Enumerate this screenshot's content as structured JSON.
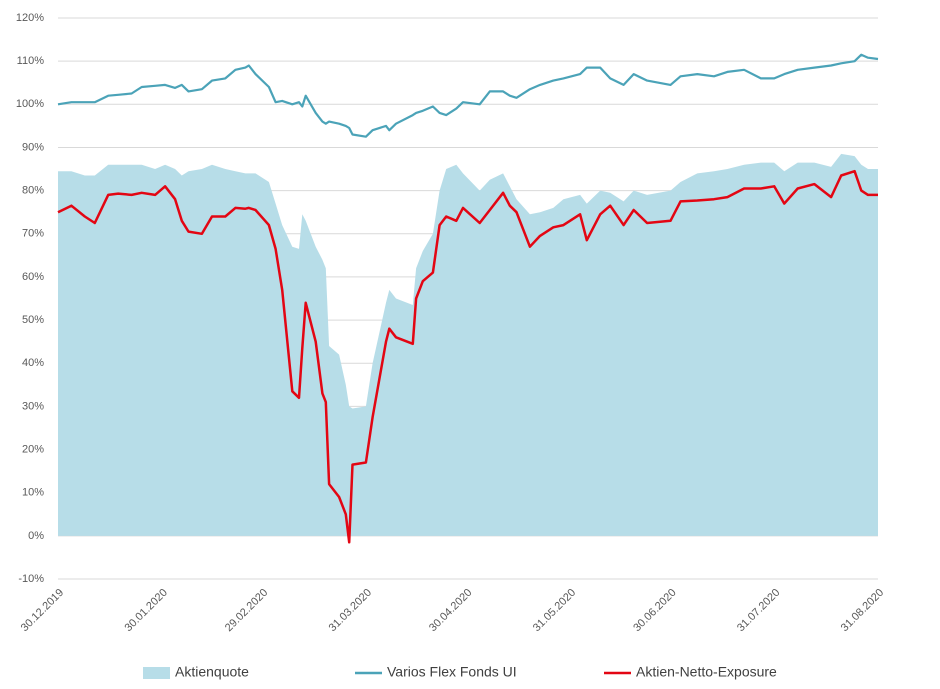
{
  "chart_data": {
    "type": "line",
    "x": [
      "30.12.2019",
      "03.01.2020",
      "07.01.2020",
      "10.01.2020",
      "14.01.2020",
      "17.01.2020",
      "21.01.2020",
      "24.01.2020",
      "28.01.2020",
      "31.01.2020",
      "03.02.2020",
      "05.02.2020",
      "07.02.2020",
      "11.02.2020",
      "14.02.2020",
      "18.02.2020",
      "21.02.2020",
      "24.02.2020",
      "25.02.2020",
      "27.02.2020",
      "02.03.2020",
      "04.03.2020",
      "06.03.2020",
      "09.03.2020",
      "11.03.2020",
      "12.03.2020",
      "13.03.2020",
      "16.03.2020",
      "18.03.2020",
      "19.03.2020",
      "20.03.2020",
      "23.03.2020",
      "25.03.2020",
      "26.03.2020",
      "27.03.2020",
      "31.03.2020",
      "02.04.2020",
      "06.04.2020",
      "07.04.2020",
      "09.04.2020",
      "14.04.2020",
      "15.04.2020",
      "17.04.2020",
      "20.04.2020",
      "22.04.2020",
      "24.04.2020",
      "27.04.2020",
      "29.04.2020",
      "04.05.2020",
      "07.05.2020",
      "11.05.2020",
      "13.05.2020",
      "15.05.2020",
      "19.05.2020",
      "22.05.2020",
      "26.05.2020",
      "29.05.2020",
      "03.06.2020",
      "05.06.2020",
      "09.06.2020",
      "12.06.2020",
      "16.06.2020",
      "19.06.2020",
      "23.06.2020",
      "30.06.2020",
      "03.07.2020",
      "08.07.2020",
      "13.07.2020",
      "17.07.2020",
      "22.07.2020",
      "27.07.2020",
      "31.07.2020",
      "03.08.2020",
      "07.08.2020",
      "12.08.2020",
      "17.08.2020",
      "20.08.2020",
      "24.08.2020",
      "26.08.2020",
      "28.08.2020",
      "31.08.2020"
    ],
    "series": [
      {
        "name": "Aktienquote",
        "kind": "area",
        "color": "#b7dde8",
        "values": [
          84.5,
          84.5,
          83.5,
          83.5,
          86,
          86,
          86,
          86,
          85,
          86,
          85,
          83.5,
          84.5,
          85,
          86,
          85,
          84.5,
          84,
          84,
          84,
          82,
          77,
          72,
          67,
          66.5,
          74.5,
          73,
          67,
          64,
          62,
          44,
          42,
          35,
          30,
          29.5,
          30,
          40,
          54,
          57,
          55,
          53.5,
          62,
          66,
          70,
          80,
          85,
          86,
          84,
          80,
          82.5,
          84,
          81,
          78,
          74.5,
          75,
          76,
          78,
          79,
          77,
          80,
          79.5,
          77.5,
          80,
          79,
          80,
          82,
          84,
          84.5,
          85,
          86,
          86.5,
          86.5,
          84.5,
          86.5,
          86.5,
          85.5,
          88.5,
          88,
          86,
          85,
          85
        ]
      },
      {
        "name": "Varios Flex Fonds UI",
        "color": "#4ba3b8",
        "values": [
          100,
          100.5,
          100.5,
          100.5,
          102,
          102.2,
          102.5,
          104,
          104.3,
          104.5,
          103.8,
          104.5,
          103,
          103.5,
          105.5,
          106,
          108,
          108.5,
          109,
          107,
          104,
          100.5,
          100.8,
          100,
          100.5,
          99.5,
          102,
          98,
          96,
          95.5,
          96,
          95.5,
          95,
          94.5,
          93,
          92.5,
          94,
          95,
          94,
          95.5,
          97.5,
          98,
          98.5,
          99.5,
          98,
          97.5,
          99,
          100.5,
          100,
          103,
          103,
          102,
          101.5,
          103.5,
          104.5,
          105.5,
          106,
          107,
          108.5,
          108.5,
          106,
          104.5,
          107,
          105.5,
          104.5,
          106.5,
          107,
          106.5,
          107.5,
          108,
          106,
          106,
          107,
          108,
          108.5,
          109,
          109.5,
          110,
          111.5,
          110.8,
          110.5
        ]
      },
      {
        "name": "Aktien-Netto-Exposure",
        "color": "#e30613",
        "values": [
          75,
          76.5,
          74,
          72.5,
          79,
          79.3,
          79,
          79.5,
          79,
          81,
          78,
          73,
          70.5,
          70,
          74,
          74,
          76,
          75.8,
          76,
          75.5,
          72,
          66.5,
          57,
          33.5,
          32,
          43.5,
          54,
          45,
          33,
          31,
          12,
          9,
          5,
          -1.5,
          16.5,
          17,
          27.5,
          45,
          48,
          46,
          44.5,
          55,
          59,
          61,
          72,
          74,
          73,
          76,
          72.5,
          75.5,
          79.5,
          76.5,
          75,
          67,
          69.5,
          71.5,
          72,
          74.5,
          68.5,
          74.5,
          76.5,
          72,
          75.5,
          72.5,
          73,
          77.5,
          77.7,
          78,
          78.5,
          80.5,
          80.5,
          81,
          77,
          80.5,
          81.5,
          78.5,
          83.5,
          84.5,
          80,
          79,
          79
        ]
      }
    ],
    "ylim": [
      -10,
      120
    ],
    "yticks": [
      {
        "value": -10,
        "label": "-10%"
      },
      {
        "value": 0,
        "label": "0%"
      },
      {
        "value": 10,
        "label": "10%"
      },
      {
        "value": 20,
        "label": "20%"
      },
      {
        "value": 30,
        "label": "30%"
      },
      {
        "value": 40,
        "label": "40%"
      },
      {
        "value": 50,
        "label": "50%"
      },
      {
        "value": 60,
        "label": "60%"
      },
      {
        "value": 70,
        "label": "70%"
      },
      {
        "value": 80,
        "label": "80%"
      },
      {
        "value": 90,
        "label": "90%"
      },
      {
        "value": 100,
        "label": "100%"
      },
      {
        "value": 110,
        "label": "110%"
      },
      {
        "value": 120,
        "label": "120%"
      }
    ],
    "xlim": [
      "30.12.2019",
      "31.08.2020"
    ],
    "xticks": [
      "30.12.2019",
      "30.01.2020",
      "29.02.2020",
      "31.03.2020",
      "30.04.2020",
      "31.05.2020",
      "30.06.2020",
      "31.07.2020",
      "31.08.2020"
    ],
    "grid": true,
    "legend": "bottom"
  }
}
